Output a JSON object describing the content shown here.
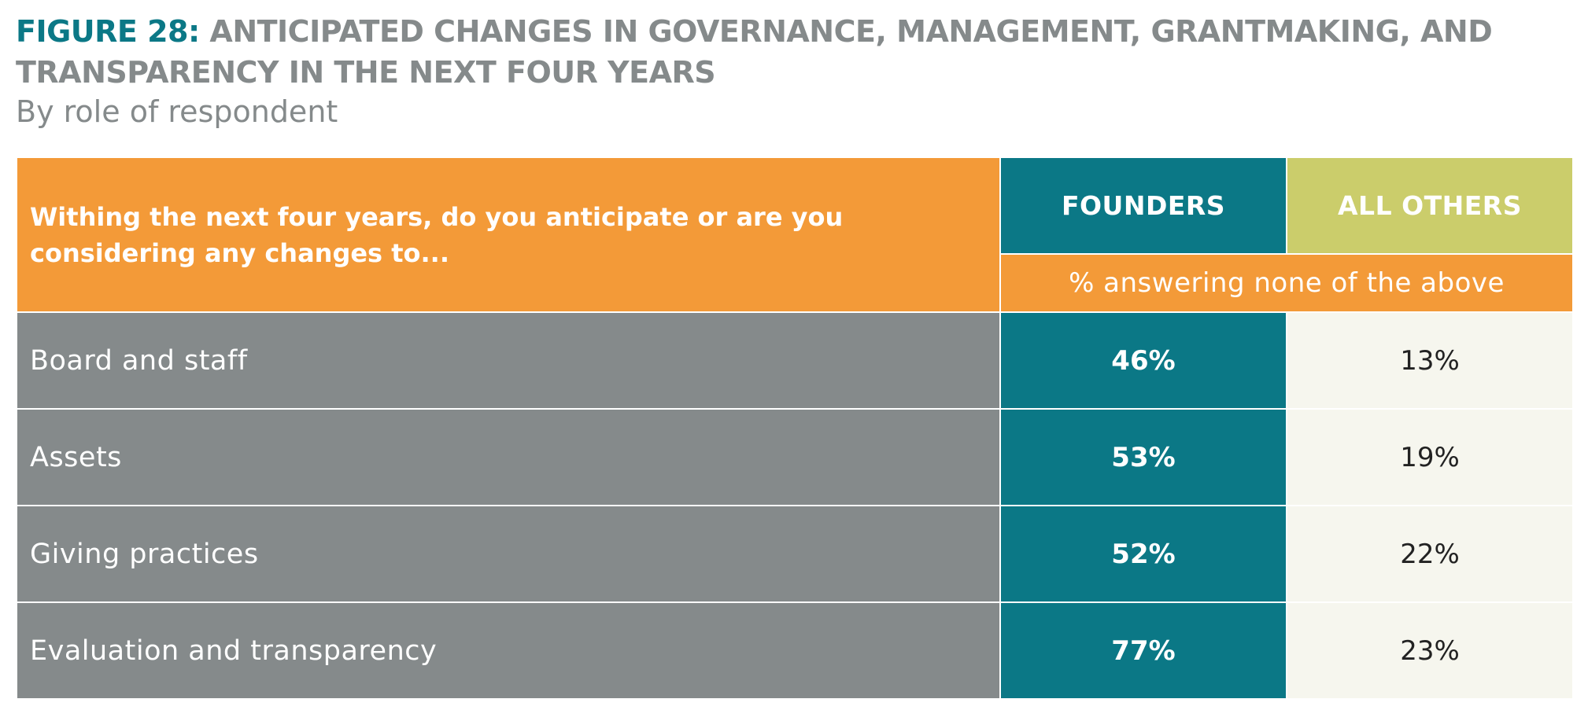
{
  "figure": {
    "label": "FIGURE 28:",
    "title": "ANTICIPATED CHANGES IN GOVERNANCE, MANAGEMENT, GRANTMAKING, AND TRANSPARENCY IN THE NEXT FOUR YEARS",
    "subtitle": "By role of respondent"
  },
  "colors": {
    "teal": "#0b7886",
    "orange": "#f39a38",
    "olive": "#cbcd6b",
    "gray": "#858a8b",
    "cream": "#f6f6ee"
  },
  "chart_data": {
    "type": "table",
    "title": "ANTICIPATED CHANGES IN GOVERNANCE, MANAGEMENT, GRANTMAKING, AND TRANSPARENCY IN THE NEXT FOUR YEARS",
    "subtitle": "By role of respondent",
    "question": "Withing the next four years, do you anticipate or are you considering any changes to...",
    "measure": "% answering none of the above",
    "columns": [
      "FOUNDERS",
      "ALL OTHERS"
    ],
    "rows": [
      {
        "label": "Board and staff",
        "founders": "46%",
        "others": "13%"
      },
      {
        "label": "Assets",
        "founders": "53%",
        "others": "19%"
      },
      {
        "label": "Giving practices",
        "founders": "52%",
        "others": "22%"
      },
      {
        "label": "Evaluation and transparency",
        "founders": "77%",
        "others": "23%"
      }
    ]
  }
}
